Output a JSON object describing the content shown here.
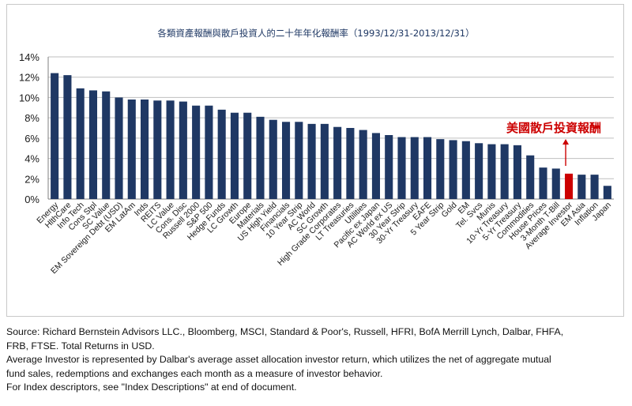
{
  "chart_data": {
    "type": "bar",
    "title": "各類資產報酬與散戶投資人的二十年年化報酬率（1993/12/31-2013/12/31）",
    "ylim": [
      0,
      14
    ],
    "yticks": [
      "0%",
      "2%",
      "4%",
      "6%",
      "8%",
      "10%",
      "12%",
      "14%"
    ],
    "grid": true,
    "categories": [
      "Energy",
      "HlthCare",
      "Info Tech",
      "Cons Stpl",
      "SC Value",
      "EM Sovereign Debt (USD)",
      "EM LatAm",
      "Inds",
      "REITS",
      "LC Value",
      "Cons. Disc",
      "Russell 2000",
      "S&P 500",
      "Hedge Funds",
      "LC Growth",
      "Europe",
      "Materials",
      "US High Yield",
      "Financials",
      "10 Year Strip",
      "AC World",
      "SC Growth",
      "High Grade Corporates",
      "LT Treasuries",
      "Utilities",
      "Pacific ex Japan",
      "AC World ex US",
      "30 Year Strip",
      "30-Yr Treasury",
      "EAFE",
      "5 Year Strip",
      "Gold",
      "EM",
      "Tel. Svcs",
      "Munis",
      "10-Yr Treasury",
      "5-Yr Treasury",
      "Commodities",
      "House Prices",
      "3-Month T-Bill",
      "Average Investor",
      "EM Asia",
      "Inflation",
      "Japan"
    ],
    "values": [
      12.4,
      12.2,
      10.9,
      10.7,
      10.6,
      10.0,
      9.8,
      9.8,
      9.7,
      9.7,
      9.6,
      9.2,
      9.2,
      8.8,
      8.5,
      8.5,
      8.1,
      7.8,
      7.6,
      7.6,
      7.4,
      7.4,
      7.1,
      7.0,
      6.8,
      6.5,
      6.3,
      6.1,
      6.1,
      6.1,
      5.9,
      5.8,
      5.7,
      5.5,
      5.4,
      5.4,
      5.3,
      4.3,
      3.1,
      3.0,
      2.5,
      2.4,
      2.4,
      1.3
    ],
    "highlight_index": 40,
    "colors": {
      "bar": "#1f3864",
      "highlight": "#cc0000",
      "annotation": "#cc0000",
      "title": "#1f3864"
    },
    "annotation": {
      "text": "美國散戶投資報酬",
      "target": "Average Investor"
    }
  },
  "footnote": {
    "line1": "Source: Richard Bernstein Advisors LLC., Bloomberg, MSCI, Standard & Poor's, Russell, HFRI, BofA Merrill Lynch, Dalbar, FHFA,",
    "line2": "FRB, FTSE.  Total Returns in USD.",
    "line3": "Average Investor is represented by Dalbar's average asset allocation investor return, which utilizes the net of aggregate mutual",
    "line4": "fund sales, redemptions and exchanges each month as a measure of investor behavior.",
    "line5": "For Index descriptors, see \"Index Descriptions\" at end of document."
  }
}
